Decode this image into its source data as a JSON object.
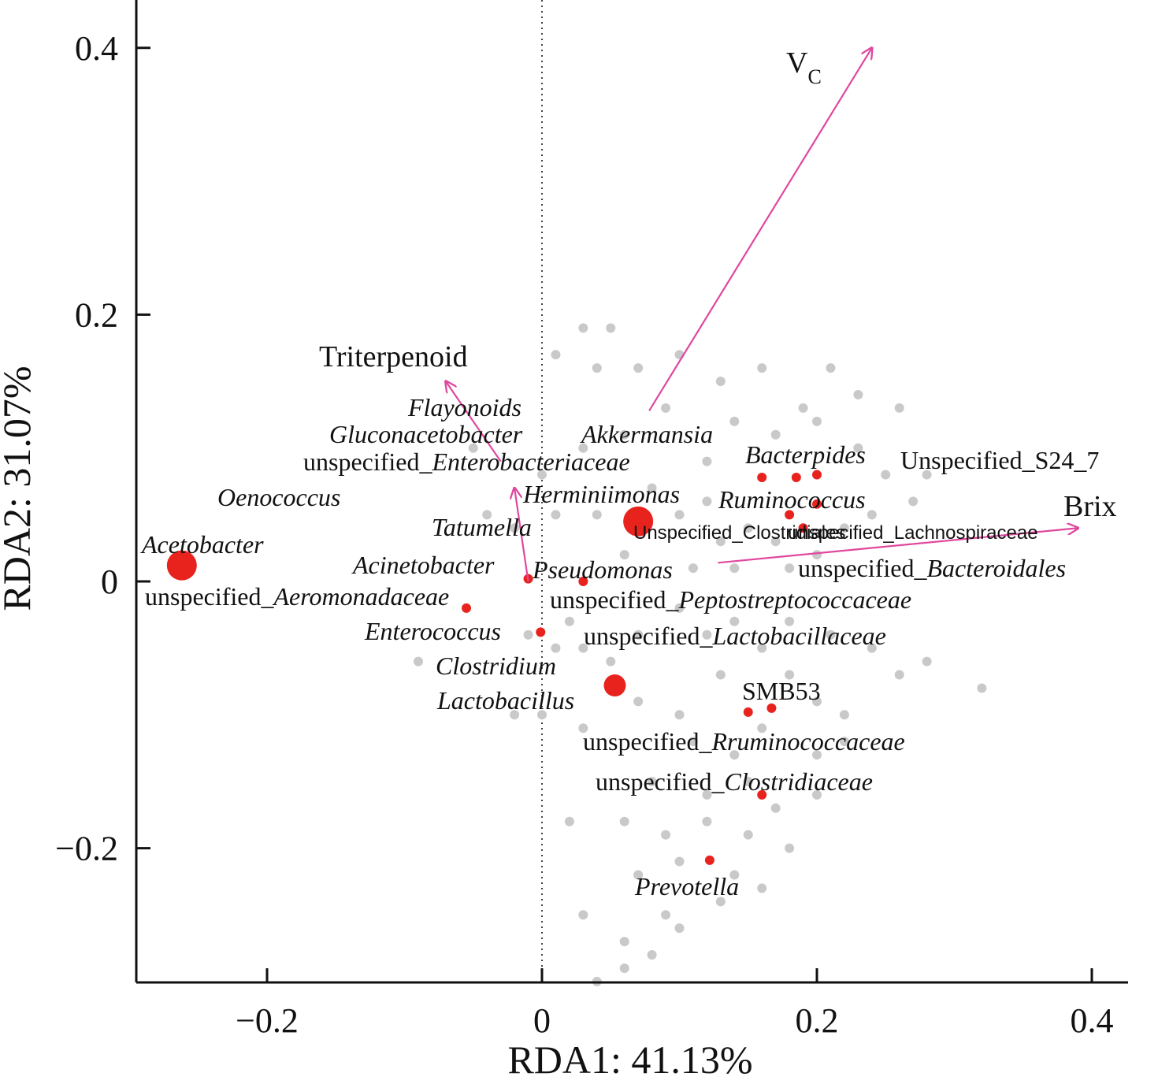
{
  "chart_data": {
    "type": "scatter",
    "title": "",
    "xlabel": "RDA1: 41.13%",
    "ylabel": "RDA2: 31.07%",
    "xlim": [
      -0.3,
      0.42
    ],
    "ylim": [
      -0.3,
      0.43
    ],
    "x_ticks": [
      {
        "value": -0.2,
        "label": "−0.2"
      },
      {
        "value": 0,
        "label": "0"
      },
      {
        "value": 0.2,
        "label": "0.2"
      },
      {
        "value": 0.4,
        "label": "0.4"
      }
    ],
    "y_ticks": [
      {
        "value": -0.2,
        "label": "−0.2"
      },
      {
        "value": 0,
        "label": "0"
      },
      {
        "value": 0.2,
        "label": "0.2"
      },
      {
        "value": 0.4,
        "label": "0.4"
      }
    ],
    "reference_lines": {
      "x": 0,
      "y": 0,
      "style": "dotted"
    },
    "colors": {
      "environment_arrow": "#e0479e",
      "taxa_point": "#e8231e",
      "sample_point": "#c9c9c9",
      "axis": "#111111"
    },
    "environmental_vectors": [
      {
        "name": "V",
        "subscript": "C",
        "x": 0.24,
        "y": 0.4
      },
      {
        "name": "Brix",
        "x": 0.39,
        "y": 0.04
      },
      {
        "name": "Triterpenoid",
        "x": -0.07,
        "y": 0.15
      },
      {
        "name": "Flayonoids",
        "x": -0.02,
        "y": 0.07
      }
    ],
    "taxa": [
      {
        "name": "Acetobacter",
        "italic": true,
        "x": -0.262,
        "y": 0.012,
        "size": 3
      },
      {
        "name": "Akkermansia",
        "italic": true,
        "x": 0.16,
        "y": 0.078,
        "size": 1
      },
      {
        "name": "Bacterpides",
        "italic": true,
        "x": 0.185,
        "y": 0.078,
        "size": 1
      },
      {
        "name": "Ruminococcus",
        "italic": true,
        "x": 0.18,
        "y": 0.05,
        "size": 1
      },
      {
        "name": "Herminiimonas",
        "italic": true,
        "x": 0.07,
        "y": 0.045,
        "size": 3
      },
      {
        "name": "Pseudomonas",
        "italic": true,
        "x": 0.03,
        "y": 0,
        "size": 1
      },
      {
        "name": "Acinetobacter",
        "italic": true,
        "x": -0.01,
        "y": 0.002,
        "size": 1
      },
      {
        "name": "Enterococcus",
        "italic": true,
        "x": -0.001,
        "y": -0.038,
        "size": 1
      },
      {
        "name": "Lactobacillus",
        "italic": true,
        "x": 0.053,
        "y": -0.078,
        "size": 2
      },
      {
        "name": "Prevotella",
        "italic": true,
        "x": 0.122,
        "y": -0.209,
        "size": 1
      },
      {
        "name": "SMB53",
        "italic": false,
        "x": 0.167,
        "y": -0.095,
        "size": 1
      },
      {
        "name": "unspecified_Aeromonadaceae",
        "prefix": "unspecified_",
        "italic_part": "Aeromonadaceae",
        "x": -0.055,
        "y": -0.02,
        "size": 1
      },
      {
        "name": "unspecified_Rruminococcaceae",
        "prefix": "unspecified_",
        "italic_part": "Rruminococcaceae",
        "x": 0.15,
        "y": -0.098,
        "size": 1
      },
      {
        "name": "unspecified_Clostridiaceae",
        "prefix": "unspecified_",
        "italic_part": "Clostridiaceae",
        "x": 0.16,
        "y": -0.16,
        "size": 1
      },
      {
        "name": "unspecified_Bacteroidales",
        "prefix": "unspecified_",
        "italic_part": "Bacteroidales",
        "x": 0.2,
        "y": 0.058,
        "size": 1
      },
      {
        "name": "Unspecified_S24_7",
        "x": 0.2,
        "y": 0.08,
        "size": 1
      },
      {
        "name": "unspecified_Lachnospiraceae",
        "x": 0.19,
        "y": 0.04,
        "size": 1
      }
    ],
    "sample_points": [
      [
        0.03,
        0.19
      ],
      [
        0.05,
        0.19
      ],
      [
        0.01,
        0.17
      ],
      [
        0.04,
        0.16
      ],
      [
        0.07,
        0.16
      ],
      [
        0.1,
        0.17
      ],
      [
        0.13,
        0.15
      ],
      [
        0.16,
        0.16
      ],
      [
        0.19,
        0.13
      ],
      [
        0.21,
        0.16
      ],
      [
        0.23,
        0.14
      ],
      [
        0.26,
        0.13
      ],
      [
        0.14,
        0.12
      ],
      [
        0.17,
        0.11
      ],
      [
        0.09,
        0.13
      ],
      [
        0.06,
        0.11
      ],
      [
        0.03,
        0.1
      ],
      [
        0.12,
        0.09
      ],
      [
        0.2,
        0.12
      ],
      [
        0.23,
        0.1
      ],
      [
        0.25,
        0.08
      ],
      [
        0.27,
        0.06
      ],
      [
        0.28,
        0.08
      ],
      [
        0.08,
        0.07
      ],
      [
        0.1,
        0.05
      ],
      [
        0.12,
        0.06
      ],
      [
        0.15,
        0.04
      ],
      [
        0.13,
        0.03
      ],
      [
        0.17,
        0.03
      ],
      [
        0.2,
        0.02
      ],
      [
        0.22,
        0.04
      ],
      [
        0.24,
        0.05
      ],
      [
        0.11,
        0.01
      ],
      [
        0.14,
        0.01
      ],
      [
        0.18,
        0.01
      ],
      [
        0.06,
        0.02
      ],
      [
        0.04,
        0.05
      ],
      [
        -0.05,
        0.1
      ],
      [
        -0.04,
        0.05
      ],
      [
        -0.02,
        0.04
      ],
      [
        0.0,
        0.08
      ],
      [
        0.01,
        0.05
      ],
      [
        -0.01,
        -0.04
      ],
      [
        0.01,
        -0.05
      ],
      [
        0.02,
        -0.03
      ],
      [
        0.03,
        -0.05
      ],
      [
        0.05,
        -0.06
      ],
      [
        0.07,
        -0.04
      ],
      [
        0.1,
        -0.02
      ],
      [
        0.12,
        -0.04
      ],
      [
        0.14,
        -0.03
      ],
      [
        0.16,
        -0.05
      ],
      [
        0.18,
        -0.03
      ],
      [
        0.21,
        -0.04
      ],
      [
        0.24,
        -0.05
      ],
      [
        0.26,
        -0.07
      ],
      [
        0.28,
        -0.06
      ],
      [
        0.32,
        -0.08
      ],
      [
        0.07,
        -0.09
      ],
      [
        0.1,
        -0.1
      ],
      [
        0.13,
        -0.07
      ],
      [
        0.18,
        -0.07
      ],
      [
        0.2,
        -0.09
      ],
      [
        0.22,
        -0.1
      ],
      [
        0.11,
        -0.12
      ],
      [
        0.14,
        -0.13
      ],
      [
        0.16,
        -0.11
      ],
      [
        0.2,
        -0.13
      ],
      [
        0.22,
        -0.12
      ],
      [
        0.08,
        -0.15
      ],
      [
        0.12,
        -0.16
      ],
      [
        0.15,
        -0.15
      ],
      [
        0.17,
        -0.17
      ],
      [
        0.2,
        -0.16
      ],
      [
        0.02,
        -0.18
      ],
      [
        0.06,
        -0.18
      ],
      [
        0.09,
        -0.19
      ],
      [
        0.12,
        -0.18
      ],
      [
        0.15,
        -0.19
      ],
      [
        0.18,
        -0.2
      ],
      [
        0.1,
        -0.21
      ],
      [
        0.14,
        -0.22
      ],
      [
        0.07,
        -0.22
      ],
      [
        0.03,
        -0.25
      ],
      [
        0.06,
        -0.27
      ],
      [
        0.09,
        -0.25
      ],
      [
        0.1,
        -0.26
      ],
      [
        0.13,
        -0.24
      ],
      [
        0.16,
        -0.23
      ],
      [
        0.06,
        -0.29
      ],
      [
        0.08,
        -0.28
      ],
      [
        0.04,
        -0.3
      ],
      [
        -0.02,
        -0.1
      ],
      [
        -0.09,
        -0.06
      ],
      [
        0.0,
        -0.1
      ],
      [
        0.03,
        -0.11
      ]
    ]
  }
}
